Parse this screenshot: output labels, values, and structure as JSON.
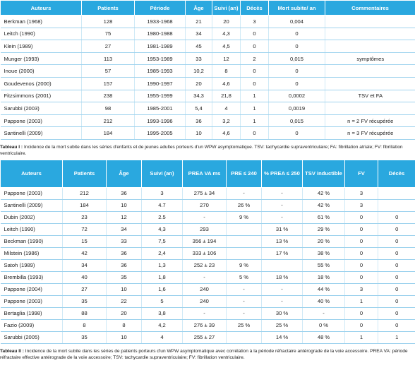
{
  "table1": {
    "headers": [
      "Auteurs",
      "Patients",
      "Période",
      "Âge",
      "Suivi (an)",
      "Décès",
      "Mort subite/ an",
      "Commentaires"
    ],
    "rows": [
      [
        "Berkman (1968)",
        "128",
        "1933-1968",
        "21",
        "20",
        "3",
        "0,004",
        null
      ],
      [
        "Leitch (1990)",
        "75",
        "1980-1988",
        "34",
        "4,3",
        "0",
        "0",
        null
      ],
      [
        "Klein (1989)",
        "27",
        "1981-1989",
        "45",
        "4,5",
        "0",
        "0",
        null
      ],
      [
        "Munger (1993)",
        "113",
        "1953-1989",
        "33",
        "12",
        "2",
        "0,015",
        "symptômes"
      ],
      [
        "Inoue (2000)",
        "57",
        "1985-1993",
        "10,2",
        "8",
        "0",
        "0",
        null
      ],
      [
        "Goudevenos (2000)",
        "157",
        "1990-1997",
        "20",
        "4,6",
        "0",
        "0",
        null
      ],
      [
        "Fitzsimmons (2001)",
        "238",
        "1955-1999",
        "34,3",
        "21,8",
        "1",
        "0,0002",
        "TSV et FA"
      ],
      [
        "Sarubbi (2003)",
        "98",
        "1985-2001",
        "5,4",
        "4",
        "1",
        "0,0019",
        null
      ],
      [
        "Pappone (2003)",
        "212",
        "1993-1996",
        "36",
        "3,2",
        "1",
        "0,015",
        "n = 2 FV récupérée"
      ],
      [
        "Santinelli (2009)",
        "184",
        "1995-2005",
        "10",
        "4,6",
        "0",
        "0",
        "n = 3 FV récupérée"
      ]
    ],
    "caption_label": "Tableau I :",
    "caption": "Incidence de la mort subite dans les séries d'enfants et de jeunes adultes porteurs d'un WPW asymptomatique. TSV: tachycardie supraventriculaire; FA: fibrillation atriale; FV: fibrillation ventriculaire."
  },
  "table2": {
    "headers": [
      "Auteurs",
      "Patients",
      "Âge",
      "Suivi (an)",
      "PREA VA ms",
      "PRE ≤ 240",
      "% PREA ≤ 250",
      "TSV inductible",
      "FV",
      "Décès"
    ],
    "rows": [
      [
        "Pappone (2003)",
        "212",
        "36",
        "3",
        "275 ± 34",
        "-",
        "-",
        "42 %",
        "3",
        null
      ],
      [
        "Santinelli (2009)",
        "184",
        "10",
        "4.7",
        "270",
        "26 %",
        "-",
        "42 %",
        "3",
        null
      ],
      [
        "Dubin (2002)",
        "23",
        "12",
        "2.5",
        "-",
        "9 %",
        "-",
        "61 %",
        "0",
        "0"
      ],
      [
        "Leitch (1990)",
        "72",
        "34",
        "4,3",
        "293",
        null,
        "31 %",
        "29 %",
        "0",
        "0"
      ],
      [
        "Beckman (1990)",
        "15",
        "33",
        "7,5",
        "356 ± 194",
        null,
        "13 %",
        "20 %",
        "0",
        "0"
      ],
      [
        "Milstein (1986)",
        "42",
        "36",
        "2,4",
        "333 ± 106",
        null,
        "17 %",
        "38 %",
        "0",
        "0"
      ],
      [
        "Satoh (1989)",
        "34",
        "36",
        "1,3",
        "252 ± 23",
        "9 %",
        null,
        "55 %",
        "0",
        "0"
      ],
      [
        "Brembilla (1993)",
        "40",
        "35",
        "1,8",
        "-",
        "5 %",
        "18 %",
        "18 %",
        "0",
        "0"
      ],
      [
        "Pappone (2004)",
        "27",
        "10",
        "1,6",
        "240",
        "-",
        "-",
        "44 %",
        "3",
        "0"
      ],
      [
        "Pappone (2003)",
        "35",
        "22",
        "5",
        "240",
        "-",
        "-",
        "40 %",
        "1",
        "0"
      ],
      [
        "Bertaglia (1998)",
        "88",
        "20",
        "3,8",
        "-",
        "-",
        "30 %",
        "-",
        "0",
        "0"
      ],
      [
        "Fazio (2009)",
        "8",
        "8",
        "4,2",
        "276 ± 39",
        "25 %",
        "25 %",
        "0 %",
        "0",
        "0"
      ],
      [
        "Sarubbi (2005)",
        "35",
        "10",
        "4",
        "255 ± 27",
        null,
        "14 %",
        "48 %",
        "1",
        "1"
      ]
    ],
    "caption_label": "Tableau II :",
    "caption": "Incidence de la mort subite dans les séries de patients porteurs d'un WPW asymptomatique avec corrélation à la période réfractaire antérograde de la voie accessoire. PREA VA: période réfractaire effective antérograde de la voie accessoire; TSV: tachycardie supraventriculaire; FV: fibrillation ventriculaire."
  }
}
